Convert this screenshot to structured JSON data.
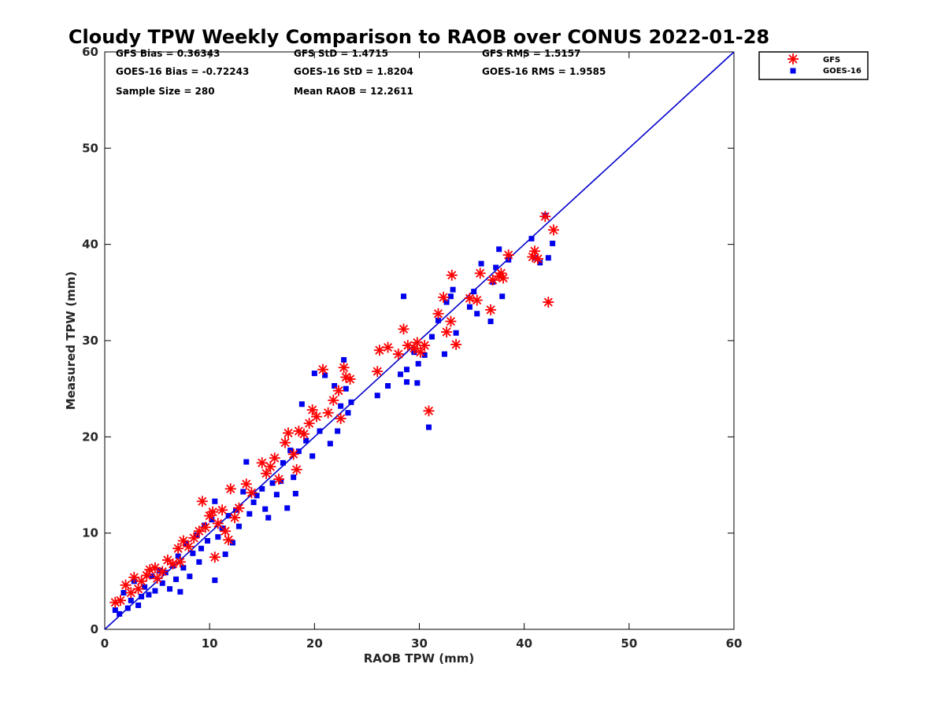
{
  "chart_data": {
    "type": "scatter",
    "title": "Cloudy TPW Weekly Comparison to RAOB over CONUS 2022-01-28",
    "xlabel": "RAOB TPW (mm)",
    "ylabel": "Measured TPW (mm)",
    "xlim": [
      0,
      60
    ],
    "ylim": [
      0,
      60
    ],
    "xticks": [
      "0",
      "10",
      "20",
      "30",
      "40",
      "50",
      "60"
    ],
    "yticks": [
      "0",
      "10",
      "20",
      "30",
      "40",
      "50",
      "60"
    ],
    "grid": false,
    "legend_position": "top-right-outside",
    "stats": [
      "GFS Bias = 0.36343",
      "GFS StD = 1.4715",
      "GFS RMS = 1.5157",
      "GOES-16 Bias = -0.72243",
      "GOES-16 StD = 1.8204",
      "GOES-16 RMS = 1.9585",
      "Sample Size = 280",
      "Mean RAOB = 12.2611"
    ],
    "reference_line": {
      "x": [
        0,
        60
      ],
      "y": [
        0,
        60
      ],
      "color": "#0000cc"
    },
    "series": [
      {
        "name": "GFS",
        "marker": "asterisk",
        "color": "#ff0000",
        "points": [
          [
            1.0,
            2.8
          ],
          [
            1.5,
            3.0
          ],
          [
            2.0,
            4.6
          ],
          [
            2.5,
            3.8
          ],
          [
            2.8,
            5.4
          ],
          [
            3.2,
            4.2
          ],
          [
            3.5,
            5.0
          ],
          [
            4.0,
            5.6
          ],
          [
            4.3,
            6.2
          ],
          [
            4.8,
            6.4
          ],
          [
            5.0,
            5.3
          ],
          [
            5.5,
            6.0
          ],
          [
            6.0,
            7.2
          ],
          [
            6.5,
            6.8
          ],
          [
            7.0,
            8.4
          ],
          [
            7.2,
            7.0
          ],
          [
            7.5,
            9.2
          ],
          [
            8.0,
            8.6
          ],
          [
            8.5,
            9.5
          ],
          [
            9.0,
            10.2
          ],
          [
            9.3,
            13.3
          ],
          [
            9.6,
            10.6
          ],
          [
            10.0,
            11.8
          ],
          [
            10.3,
            12.2
          ],
          [
            10.5,
            7.5
          ],
          [
            10.8,
            11.0
          ],
          [
            11.2,
            12.4
          ],
          [
            11.5,
            10.2
          ],
          [
            11.8,
            9.3
          ],
          [
            12.0,
            14.6
          ],
          [
            12.4,
            11.6
          ],
          [
            12.8,
            12.6
          ],
          [
            13.5,
            15.1
          ],
          [
            14.0,
            14.2
          ],
          [
            15.0,
            17.3
          ],
          [
            15.4,
            16.2
          ],
          [
            15.8,
            16.9
          ],
          [
            16.2,
            17.8
          ],
          [
            16.6,
            15.6
          ],
          [
            17.2,
            19.4
          ],
          [
            17.5,
            20.4
          ],
          [
            18.0,
            18.2
          ],
          [
            18.3,
            16.6
          ],
          [
            18.5,
            20.6
          ],
          [
            19.0,
            20.3
          ],
          [
            19.5,
            21.4
          ],
          [
            19.8,
            22.8
          ],
          [
            20.2,
            22.1
          ],
          [
            20.8,
            27.0
          ],
          [
            21.3,
            22.5
          ],
          [
            21.8,
            23.8
          ],
          [
            22.3,
            24.8
          ],
          [
            22.5,
            21.9
          ],
          [
            22.8,
            27.2
          ],
          [
            23.0,
            26.2
          ],
          [
            23.4,
            26.0
          ],
          [
            26.0,
            26.8
          ],
          [
            26.2,
            29.0
          ],
          [
            27.0,
            29.3
          ],
          [
            28.0,
            28.6
          ],
          [
            28.5,
            31.2
          ],
          [
            28.9,
            29.5
          ],
          [
            29.5,
            29.2
          ],
          [
            29.8,
            29.8
          ],
          [
            30.1,
            28.8
          ],
          [
            30.5,
            29.5
          ],
          [
            30.9,
            22.7
          ],
          [
            31.8,
            32.8
          ],
          [
            32.3,
            34.5
          ],
          [
            32.6,
            30.9
          ],
          [
            33.0,
            32.0
          ],
          [
            33.1,
            36.8
          ],
          [
            33.5,
            29.6
          ],
          [
            34.8,
            34.4
          ],
          [
            35.5,
            34.2
          ],
          [
            35.8,
            37.0
          ],
          [
            36.8,
            33.2
          ],
          [
            37.0,
            36.3
          ],
          [
            37.6,
            36.7
          ],
          [
            37.8,
            37.0
          ],
          [
            38.0,
            36.5
          ],
          [
            38.5,
            38.9
          ],
          [
            40.8,
            38.7
          ],
          [
            41.0,
            39.3
          ],
          [
            41.3,
            38.5
          ],
          [
            42.0,
            42.9
          ],
          [
            42.3,
            34.0
          ],
          [
            42.8,
            41.5
          ]
        ]
      },
      {
        "name": "GOES-16",
        "marker": "square",
        "color": "#0000ee",
        "points": [
          [
            1.0,
            2.0
          ],
          [
            1.4,
            1.6
          ],
          [
            1.8,
            3.8
          ],
          [
            2.2,
            2.2
          ],
          [
            2.5,
            3.0
          ],
          [
            2.8,
            5.0
          ],
          [
            3.2,
            2.5
          ],
          [
            3.5,
            3.4
          ],
          [
            3.8,
            4.4
          ],
          [
            4.2,
            3.6
          ],
          [
            4.5,
            5.5
          ],
          [
            4.8,
            4.0
          ],
          [
            5.2,
            6.1
          ],
          [
            5.5,
            4.8
          ],
          [
            5.8,
            5.9
          ],
          [
            6.2,
            4.2
          ],
          [
            6.5,
            6.6
          ],
          [
            6.8,
            5.2
          ],
          [
            7.0,
            7.6
          ],
          [
            7.2,
            3.9
          ],
          [
            7.5,
            6.4
          ],
          [
            7.8,
            8.9
          ],
          [
            8.1,
            5.5
          ],
          [
            8.4,
            7.9
          ],
          [
            8.8,
            9.8
          ],
          [
            9.0,
            7.0
          ],
          [
            9.2,
            8.4
          ],
          [
            9.5,
            10.8
          ],
          [
            9.8,
            9.2
          ],
          [
            10.2,
            11.4
          ],
          [
            10.5,
            13.3
          ],
          [
            10.5,
            5.1
          ],
          [
            10.8,
            9.6
          ],
          [
            11.2,
            10.5
          ],
          [
            11.5,
            7.8
          ],
          [
            11.8,
            11.8
          ],
          [
            12.2,
            9.0
          ],
          [
            12.5,
            12.4
          ],
          [
            12.8,
            10.7
          ],
          [
            13.2,
            14.3
          ],
          [
            13.5,
            17.4
          ],
          [
            13.8,
            12.0
          ],
          [
            14.2,
            13.2
          ],
          [
            14.5,
            13.9
          ],
          [
            15.0,
            14.6
          ],
          [
            15.3,
            12.5
          ],
          [
            15.6,
            11.6
          ],
          [
            16.0,
            15.2
          ],
          [
            16.4,
            14.0
          ],
          [
            16.8,
            15.4
          ],
          [
            17.0,
            17.3
          ],
          [
            17.4,
            12.6
          ],
          [
            17.7,
            18.6
          ],
          [
            18.0,
            15.8
          ],
          [
            18.2,
            14.1
          ],
          [
            18.5,
            18.5
          ],
          [
            18.8,
            23.4
          ],
          [
            19.2,
            19.6
          ],
          [
            19.8,
            18.0
          ],
          [
            20.0,
            26.6
          ],
          [
            20.5,
            20.6
          ],
          [
            21.0,
            26.4
          ],
          [
            21.5,
            19.3
          ],
          [
            21.9,
            25.3
          ],
          [
            22.2,
            20.6
          ],
          [
            22.5,
            23.2
          ],
          [
            22.8,
            28.0
          ],
          [
            23.0,
            25.0
          ],
          [
            23.2,
            22.5
          ],
          [
            23.5,
            23.6
          ],
          [
            26.0,
            24.3
          ],
          [
            27.0,
            25.3
          ],
          [
            28.2,
            26.5
          ],
          [
            28.5,
            34.6
          ],
          [
            28.8,
            27.0
          ],
          [
            28.8,
            25.7
          ],
          [
            29.5,
            28.8
          ],
          [
            29.8,
            25.6
          ],
          [
            29.9,
            27.6
          ],
          [
            30.5,
            28.5
          ],
          [
            30.9,
            21.0
          ],
          [
            31.2,
            30.4
          ],
          [
            31.8,
            32.1
          ],
          [
            32.4,
            28.6
          ],
          [
            32.6,
            34.0
          ],
          [
            33.0,
            34.6
          ],
          [
            33.2,
            35.3
          ],
          [
            33.5,
            30.8
          ],
          [
            34.8,
            33.5
          ],
          [
            35.2,
            35.1
          ],
          [
            35.5,
            32.8
          ],
          [
            35.9,
            38.0
          ],
          [
            36.8,
            32.0
          ],
          [
            37.0,
            36.1
          ],
          [
            37.3,
            37.6
          ],
          [
            37.6,
            39.5
          ],
          [
            37.9,
            34.6
          ],
          [
            38.5,
            38.4
          ],
          [
            40.7,
            40.6
          ],
          [
            41.0,
            38.6
          ],
          [
            41.5,
            38.1
          ],
          [
            42.0,
            43.0
          ],
          [
            42.3,
            38.6
          ],
          [
            42.7,
            40.1
          ]
        ]
      }
    ]
  }
}
